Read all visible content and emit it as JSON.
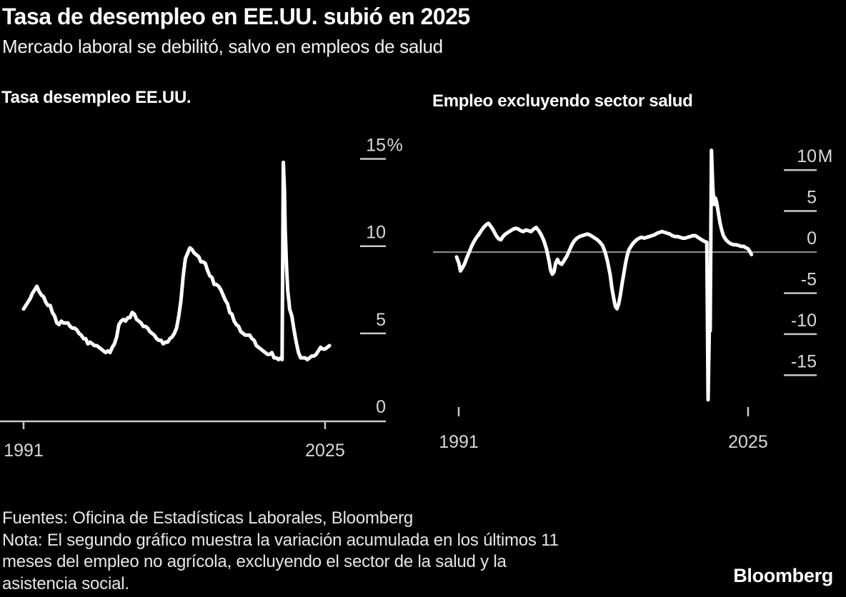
{
  "header": {
    "title": "Tasa de desempleo en EE.UU. subió en 2025",
    "subtitle": "Mercado laboral se debilitó, salvo en empleos de salud"
  },
  "footer": {
    "sources": "Fuentes: Oficina de Estadísticas Laborales, Bloomberg",
    "note_lines": [
      "Nota: El segundo gráfico muestra la variación acumulada en los últimos 11",
      "meses del empleo no agrícola, excluyendo el sector de la salud y la",
      "asistencia social."
    ]
  },
  "brand": {
    "logo": "Bloomberg"
  },
  "colors": {
    "background": "#000000",
    "title_text": "#ffffff",
    "tick_text": "#d7d7d7",
    "axis": "#c9c9c9",
    "zero_line": "#8f8f8f",
    "data_line": "#ffffff"
  },
  "chart_data": [
    {
      "type": "line",
      "title": "Tasa desempleo EE.UU.",
      "xlim": [
        1990.6,
        2025.9
      ],
      "ylim": [
        0,
        15
      ],
      "grid": false,
      "legend": "none",
      "xticks": [
        {
          "value": 1991,
          "label": "1991"
        },
        {
          "value": 2025,
          "label": "2025"
        }
      ],
      "yticks": [
        {
          "value": 15,
          "label": "15",
          "suffix": "%",
          "dash": true
        },
        {
          "value": 10,
          "label": "10",
          "suffix": "",
          "dash": true
        },
        {
          "value": 5,
          "label": "5",
          "suffix": "",
          "dash": true
        },
        {
          "value": 0,
          "label": "0",
          "suffix": "",
          "dash": false
        }
      ],
      "baseline_at_zero": true,
      "zero_line": false,
      "points": [
        [
          1991.0,
          6.4
        ],
        [
          1991.25,
          6.6
        ],
        [
          1991.5,
          6.8
        ],
        [
          1991.75,
          7.0
        ],
        [
          1992.0,
          7.3
        ],
        [
          1992.25,
          7.5
        ],
        [
          1992.5,
          7.7
        ],
        [
          1992.75,
          7.4
        ],
        [
          1993.0,
          7.2
        ],
        [
          1993.25,
          7.1
        ],
        [
          1993.5,
          6.8
        ],
        [
          1993.75,
          6.6
        ],
        [
          1994.0,
          6.6
        ],
        [
          1994.25,
          6.2
        ],
        [
          1994.5,
          6.0
        ],
        [
          1994.75,
          5.6
        ],
        [
          1995.0,
          5.5
        ],
        [
          1995.25,
          5.7
        ],
        [
          1995.5,
          5.6
        ],
        [
          1995.75,
          5.6
        ],
        [
          1996.0,
          5.6
        ],
        [
          1996.25,
          5.4
        ],
        [
          1996.5,
          5.3
        ],
        [
          1996.75,
          5.3
        ],
        [
          1997.0,
          5.2
        ],
        [
          1997.25,
          5.0
        ],
        [
          1997.5,
          4.9
        ],
        [
          1997.75,
          4.7
        ],
        [
          1998.0,
          4.7
        ],
        [
          1998.25,
          4.4
        ],
        [
          1998.5,
          4.5
        ],
        [
          1998.75,
          4.4
        ],
        [
          1999.0,
          4.3
        ],
        [
          1999.25,
          4.3
        ],
        [
          1999.5,
          4.2
        ],
        [
          1999.75,
          4.1
        ],
        [
          2000.0,
          4.0
        ],
        [
          2000.25,
          3.9
        ],
        [
          2000.5,
          4.0
        ],
        [
          2000.75,
          3.9
        ],
        [
          2001.0,
          4.2
        ],
        [
          2001.25,
          4.4
        ],
        [
          2001.5,
          4.8
        ],
        [
          2001.75,
          5.5
        ],
        [
          2002.0,
          5.7
        ],
        [
          2002.25,
          5.8
        ],
        [
          2002.5,
          5.7
        ],
        [
          2002.75,
          5.9
        ],
        [
          2003.0,
          5.9
        ],
        [
          2003.25,
          6.2
        ],
        [
          2003.5,
          6.1
        ],
        [
          2003.75,
          5.8
        ],
        [
          2004.0,
          5.7
        ],
        [
          2004.25,
          5.6
        ],
        [
          2004.5,
          5.4
        ],
        [
          2004.75,
          5.4
        ],
        [
          2005.0,
          5.3
        ],
        [
          2005.25,
          5.1
        ],
        [
          2005.5,
          5.0
        ],
        [
          2005.75,
          4.9
        ],
        [
          2006.0,
          4.7
        ],
        [
          2006.25,
          4.6
        ],
        [
          2006.5,
          4.6
        ],
        [
          2006.75,
          4.4
        ],
        [
          2007.0,
          4.5
        ],
        [
          2007.25,
          4.5
        ],
        [
          2007.5,
          4.7
        ],
        [
          2007.75,
          4.8
        ],
        [
          2008.0,
          5.0
        ],
        [
          2008.25,
          5.3
        ],
        [
          2008.5,
          6.0
        ],
        [
          2008.75,
          6.9
        ],
        [
          2009.0,
          8.3
        ],
        [
          2009.25,
          9.3
        ],
        [
          2009.5,
          9.6
        ],
        [
          2009.75,
          9.9
        ],
        [
          2010.0,
          9.8
        ],
        [
          2010.25,
          9.6
        ],
        [
          2010.5,
          9.5
        ],
        [
          2010.75,
          9.4
        ],
        [
          2011.0,
          9.1
        ],
        [
          2011.25,
          9.1
        ],
        [
          2011.5,
          9.0
        ],
        [
          2011.75,
          8.6
        ],
        [
          2012.0,
          8.3
        ],
        [
          2012.25,
          8.2
        ],
        [
          2012.5,
          7.8
        ],
        [
          2012.75,
          7.8
        ],
        [
          2013.0,
          7.7
        ],
        [
          2013.25,
          7.5
        ],
        [
          2013.5,
          7.2
        ],
        [
          2013.75,
          6.9
        ],
        [
          2014.0,
          6.7
        ],
        [
          2014.25,
          6.2
        ],
        [
          2014.5,
          6.1
        ],
        [
          2014.75,
          5.7
        ],
        [
          2015.0,
          5.5
        ],
        [
          2015.25,
          5.4
        ],
        [
          2015.5,
          5.1
        ],
        [
          2015.75,
          5.0
        ],
        [
          2016.0,
          4.9
        ],
        [
          2016.25,
          4.9
        ],
        [
          2016.5,
          4.9
        ],
        [
          2016.75,
          4.7
        ],
        [
          2017.0,
          4.6
        ],
        [
          2017.25,
          4.3
        ],
        [
          2017.5,
          4.2
        ],
        [
          2017.75,
          4.1
        ],
        [
          2018.0,
          4.0
        ],
        [
          2018.25,
          3.9
        ],
        [
          2018.5,
          3.8
        ],
        [
          2018.75,
          3.8
        ],
        [
          2019.0,
          3.9
        ],
        [
          2019.25,
          3.6
        ],
        [
          2019.5,
          3.6
        ],
        [
          2019.75,
          3.5
        ],
        [
          2020.0,
          3.6
        ],
        [
          2020.15,
          3.5
        ],
        [
          2020.29,
          14.8
        ],
        [
          2020.42,
          13.2
        ],
        [
          2020.5,
          11.0
        ],
        [
          2020.65,
          8.8
        ],
        [
          2020.8,
          7.4
        ],
        [
          2020.95,
          6.7
        ],
        [
          2021.0,
          6.4
        ],
        [
          2021.25,
          6.0
        ],
        [
          2021.5,
          5.2
        ],
        [
          2021.75,
          4.5
        ],
        [
          2022.0,
          3.9
        ],
        [
          2022.25,
          3.6
        ],
        [
          2022.5,
          3.6
        ],
        [
          2022.75,
          3.6
        ],
        [
          2023.0,
          3.5
        ],
        [
          2023.25,
          3.6
        ],
        [
          2023.5,
          3.7
        ],
        [
          2023.75,
          3.7
        ],
        [
          2024.0,
          3.8
        ],
        [
          2024.25,
          4.0
        ],
        [
          2024.5,
          4.2
        ],
        [
          2024.75,
          4.1
        ],
        [
          2025.0,
          4.1
        ],
        [
          2025.25,
          4.2
        ],
        [
          2025.5,
          4.3
        ]
      ]
    },
    {
      "type": "line",
      "title": "Empleo excluyendo sector salud",
      "xlim": [
        1990.6,
        2025.9
      ],
      "ylim": [
        -20,
        12.5
      ],
      "grid": false,
      "legend": "none",
      "xticks": [
        {
          "value": 1991,
          "label": "1991"
        },
        {
          "value": 2025,
          "label": "2025"
        }
      ],
      "yticks": [
        {
          "value": 10,
          "label": "10",
          "suffix": "M",
          "dash": true
        },
        {
          "value": 5,
          "label": "5",
          "suffix": "",
          "dash": true
        },
        {
          "value": 0,
          "label": "0",
          "suffix": "",
          "dash": false
        },
        {
          "value": -5,
          "label": "-5",
          "suffix": "",
          "dash": true
        },
        {
          "value": -10,
          "label": "-10",
          "suffix": "",
          "dash": true
        },
        {
          "value": -15,
          "label": "-15",
          "suffix": "",
          "dash": true
        }
      ],
      "baseline_at_zero": false,
      "zero_line": true,
      "points": [
        [
          1990.75,
          -0.6
        ],
        [
          1991.0,
          -1.3
        ],
        [
          1991.2,
          -2.3
        ],
        [
          1991.45,
          -1.9
        ],
        [
          1991.7,
          -1.4
        ],
        [
          1991.95,
          -0.7
        ],
        [
          1992.2,
          -0.1
        ],
        [
          1992.5,
          0.7
        ],
        [
          1992.8,
          1.3
        ],
        [
          1993.1,
          1.8
        ],
        [
          1993.4,
          2.2
        ],
        [
          1993.7,
          2.7
        ],
        [
          1994.0,
          3.1
        ],
        [
          1994.3,
          3.4
        ],
        [
          1994.5,
          3.5
        ],
        [
          1994.8,
          3.1
        ],
        [
          1995.1,
          2.6
        ],
        [
          1995.4,
          2.0
        ],
        [
          1995.7,
          1.6
        ],
        [
          1995.95,
          1.5
        ],
        [
          1996.2,
          1.9
        ],
        [
          1996.5,
          2.2
        ],
        [
          1996.8,
          2.4
        ],
        [
          1997.1,
          2.6
        ],
        [
          1997.4,
          2.8
        ],
        [
          1997.7,
          2.9
        ],
        [
          1998.0,
          2.8
        ],
        [
          1998.3,
          2.6
        ],
        [
          1998.6,
          2.5
        ],
        [
          1998.9,
          2.7
        ],
        [
          1999.2,
          2.6
        ],
        [
          1999.5,
          2.5
        ],
        [
          1999.8,
          2.8
        ],
        [
          2000.1,
          3.0
        ],
        [
          2000.4,
          2.6
        ],
        [
          2000.7,
          2.1
        ],
        [
          2001.0,
          1.4
        ],
        [
          2001.3,
          0.4
        ],
        [
          2001.6,
          -1.0
        ],
        [
          2001.8,
          -2.2
        ],
        [
          2002.0,
          -2.7
        ],
        [
          2002.2,
          -2.4
        ],
        [
          2002.4,
          -1.3
        ],
        [
          2002.6,
          -0.9
        ],
        [
          2002.8,
          -1.3
        ],
        [
          2003.1,
          -1.5
        ],
        [
          2003.4,
          -1.0
        ],
        [
          2003.7,
          -0.5
        ],
        [
          2004.0,
          0.2
        ],
        [
          2004.3,
          0.9
        ],
        [
          2004.6,
          1.4
        ],
        [
          2004.9,
          1.7
        ],
        [
          2005.2,
          1.9
        ],
        [
          2005.5,
          2.0
        ],
        [
          2005.8,
          2.1
        ],
        [
          2006.1,
          2.2
        ],
        [
          2006.4,
          2.1
        ],
        [
          2006.7,
          1.9
        ],
        [
          2007.0,
          1.7
        ],
        [
          2007.3,
          1.5
        ],
        [
          2007.6,
          1.2
        ],
        [
          2007.9,
          0.8
        ],
        [
          2008.2,
          0.0
        ],
        [
          2008.5,
          -1.2
        ],
        [
          2008.8,
          -2.8
        ],
        [
          2009.0,
          -4.4
        ],
        [
          2009.2,
          -5.6
        ],
        [
          2009.4,
          -6.6
        ],
        [
          2009.6,
          -6.9
        ],
        [
          2009.8,
          -6.3
        ],
        [
          2010.0,
          -5.2
        ],
        [
          2010.2,
          -3.8
        ],
        [
          2010.4,
          -2.6
        ],
        [
          2010.6,
          -1.4
        ],
        [
          2010.8,
          -0.4
        ],
        [
          2011.0,
          0.3
        ],
        [
          2011.3,
          0.8
        ],
        [
          2011.6,
          1.2
        ],
        [
          2011.9,
          1.5
        ],
        [
          2012.2,
          1.7
        ],
        [
          2012.5,
          1.8
        ],
        [
          2012.8,
          1.7
        ],
        [
          2013.1,
          1.8
        ],
        [
          2013.4,
          1.9
        ],
        [
          2013.7,
          2.0
        ],
        [
          2014.0,
          2.1
        ],
        [
          2014.3,
          2.3
        ],
        [
          2014.6,
          2.4
        ],
        [
          2014.9,
          2.5
        ],
        [
          2015.2,
          2.4
        ],
        [
          2015.5,
          2.3
        ],
        [
          2015.8,
          2.2
        ],
        [
          2016.1,
          2.0
        ],
        [
          2016.4,
          1.9
        ],
        [
          2016.7,
          1.9
        ],
        [
          2017.0,
          1.8
        ],
        [
          2017.3,
          1.7
        ],
        [
          2017.6,
          1.7
        ],
        [
          2017.9,
          1.8
        ],
        [
          2018.2,
          1.9
        ],
        [
          2018.5,
          2.0
        ],
        [
          2018.8,
          2.0
        ],
        [
          2019.1,
          1.8
        ],
        [
          2019.4,
          1.6
        ],
        [
          2019.7,
          1.4
        ],
        [
          2019.9,
          1.3
        ],
        [
          2020.15,
          1.2
        ],
        [
          2020.3,
          -18.0
        ],
        [
          2020.45,
          -9.3
        ],
        [
          2020.55,
          -9.6
        ],
        [
          2020.7,
          12.4
        ],
        [
          2020.85,
          8.0
        ],
        [
          2021.0,
          5.8
        ],
        [
          2021.15,
          6.6
        ],
        [
          2021.3,
          6.1
        ],
        [
          2021.5,
          4.8
        ],
        [
          2021.7,
          3.6
        ],
        [
          2021.9,
          2.7
        ],
        [
          2022.1,
          2.0
        ],
        [
          2022.4,
          1.5
        ],
        [
          2022.7,
          1.2
        ],
        [
          2023.0,
          1.0
        ],
        [
          2023.3,
          0.9
        ],
        [
          2023.6,
          0.9
        ],
        [
          2023.9,
          0.8
        ],
        [
          2024.2,
          0.7
        ],
        [
          2024.5,
          0.7
        ],
        [
          2024.8,
          0.5
        ],
        [
          2025.0,
          0.4
        ],
        [
          2025.2,
          0.1
        ],
        [
          2025.4,
          -0.3
        ]
      ]
    }
  ]
}
